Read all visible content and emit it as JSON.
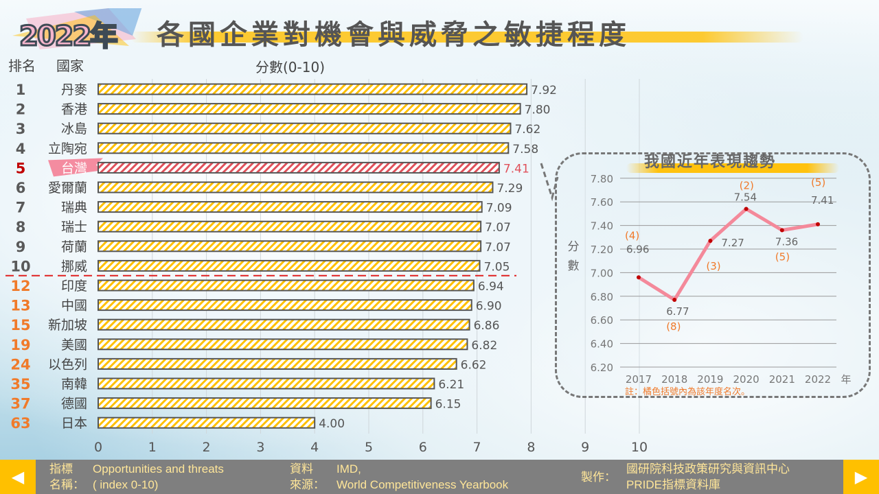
{
  "header": {
    "year_badge": "2022年",
    "title": "各國企業對機會與威脅之敏捷程度",
    "col_rank": "排名",
    "col_country": "國家",
    "score_label": "分數(0-10)"
  },
  "colors": {
    "bar": "#ffc000",
    "highlight": "#e0505a",
    "rank_top": "#595959",
    "rank_other": "#f07a2a",
    "taiwan_rank": "#c00000"
  },
  "chart_data": [
    {
      "type": "bar",
      "orientation": "horizontal",
      "title": "各國企業對機會與威脅之敏捷程度",
      "xlabel": "分數(0-10)",
      "xlim": [
        0,
        10
      ],
      "xticks": [
        0,
        1,
        2,
        3,
        4,
        5,
        6,
        7,
        8,
        9,
        10
      ],
      "categories": [
        "丹麥",
        "香港",
        "冰島",
        "立陶宛",
        "台灣",
        "愛爾蘭",
        "瑞典",
        "瑞士",
        "荷蘭",
        "挪威",
        "印度",
        "中國",
        "新加坡",
        "美國",
        "以色列",
        "南韓",
        "德國",
        "日本"
      ],
      "ranks": [
        "1",
        "2",
        "3",
        "4",
        "5",
        "6",
        "7",
        "8",
        "9",
        "10",
        "12",
        "13",
        "15",
        "19",
        "24",
        "35",
        "37",
        "63"
      ],
      "values": [
        7.92,
        7.8,
        7.62,
        7.58,
        7.41,
        7.29,
        7.09,
        7.07,
        7.07,
        7.05,
        6.94,
        6.9,
        6.86,
        6.82,
        6.62,
        6.21,
        6.15,
        4.0
      ],
      "labels": [
        "7.92",
        "7.80",
        "7.62",
        "7.58",
        "7.41",
        "7.29",
        "7.09",
        "7.07",
        "7.07",
        "7.05",
        "6.94",
        "6.90",
        "6.86",
        "6.82",
        "6.62",
        "6.21",
        "6.15",
        "4.00"
      ],
      "highlight_index": 4,
      "top10_cutoff_after_index": 9
    },
    {
      "type": "line",
      "title": "我國近年表現趨勢",
      "ylabel": "分數",
      "ylim": [
        6.2,
        7.8
      ],
      "yticks": [
        "6.20",
        "6.40",
        "6.60",
        "6.80",
        "7.00",
        "7.20",
        "7.40",
        "7.60",
        "7.80"
      ],
      "x": [
        "2017",
        "2018",
        "2019",
        "2020",
        "2021",
        "2022"
      ],
      "x_unit": "年",
      "values": [
        6.96,
        6.77,
        7.27,
        7.54,
        7.36,
        7.41
      ],
      "labels": [
        "6.96",
        "6.77",
        "7.27",
        "7.54",
        "7.36",
        "7.41"
      ],
      "ranks": [
        "(4)",
        "(8)",
        "(3)",
        "(2)",
        "(5)",
        "(5)"
      ],
      "note": "註：橘色括號內為該年度名次。"
    }
  ],
  "footer": {
    "ind_l1": "指標",
    "ind_l2": "名稱：",
    "ind_v1": "Opportunities and threats",
    "ind_v2": "( index 0-10)",
    "src_l1": "資料",
    "src_l2": "來源：",
    "src_v1": "IMD,",
    "src_v2": "World Competitiveness Yearbook",
    "maker_l": "製作：",
    "maker_v1": "國研院科技政策研究與資訊中心",
    "maker_v2": "PRIDE指標資料庫",
    "prev": "◀",
    "next": "▶"
  }
}
